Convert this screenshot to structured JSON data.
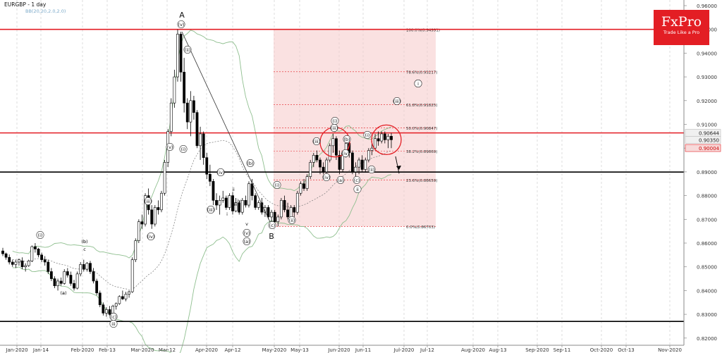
{
  "header": {
    "title": "EURGBP - 1 day",
    "indicator": "BB(20,20,2.0,2.0)"
  },
  "brand": {
    "name": "FxPro",
    "tagline": "Trade Like a Pro",
    "color": "#e31e24"
  },
  "chart_data": {
    "type": "candlestick",
    "symbol": "EURGBP",
    "timeframe": "1 day",
    "ylim": [
      0.8165,
      0.9615
    ],
    "y_ticks": [
      "0.96000",
      "0.95000",
      "0.94000",
      "0.93000",
      "0.92000",
      "0.91000",
      "0.90000",
      "0.89000",
      "0.88000",
      "0.87000",
      "0.86000",
      "0.85000",
      "0.84000",
      "0.83000",
      "0.82000"
    ],
    "x_ticks": [
      "Jan-2020",
      "Jan-14",
      "Feb-2020",
      "Feb-13",
      "Mar-2020",
      "Mar-12",
      "Apr-2020",
      "Apr-12",
      "May-2020",
      "May-13",
      "Jun-2020",
      "Jun-11",
      "Jul-2020",
      "Jul-12",
      "Aug-2020",
      "Aug-13",
      "Sep-2020",
      "Sep-11",
      "Oct-2020",
      "Oct-13",
      "Nov-2020"
    ],
    "price_tags": [
      {
        "label": "0.90644",
        "value": 0.90644,
        "style": "light"
      },
      {
        "label": "0.90350",
        "value": 0.9035,
        "style": "light"
      },
      {
        "label": "0.90004",
        "value": 0.90004,
        "style": "red"
      }
    ],
    "horizontal_lines": [
      {
        "value": 0.95,
        "color": "#e31e24"
      },
      {
        "value": 0.9064,
        "color": "#e31e24"
      },
      {
        "value": 0.8899,
        "color": "#000000"
      },
      {
        "value": 0.827,
        "color": "#000000"
      }
    ],
    "fibonacci": {
      "levels": [
        {
          "label": "100.0%(0.94991)",
          "value": 0.94991
        },
        {
          "label": "78.6%(0.93217)",
          "value": 0.93217
        },
        {
          "label": "61.8%(0.91825)",
          "value": 0.91825
        },
        {
          "label": "50.0%(0.90847)",
          "value": 0.90847
        },
        {
          "label": "38.2%(0.89869)",
          "value": 0.89869
        },
        {
          "label": "23.6%(0.88659)",
          "value": 0.88659
        },
        {
          "label": "0.0%(0.86703)",
          "value": 0.86703
        }
      ],
      "color": "#e31e24"
    },
    "candles": [
      [
        0.8567,
        0.858,
        0.8545,
        0.8555
      ],
      [
        0.8555,
        0.856,
        0.853,
        0.854
      ],
      [
        0.854,
        0.8552,
        0.851,
        0.852
      ],
      [
        0.852,
        0.853,
        0.85,
        0.851
      ],
      [
        0.851,
        0.853,
        0.8495,
        0.852
      ],
      [
        0.852,
        0.8535,
        0.8505,
        0.853
      ],
      [
        0.8525,
        0.854,
        0.849,
        0.85
      ],
      [
        0.85,
        0.8515,
        0.848,
        0.8505
      ],
      [
        0.8505,
        0.853,
        0.85,
        0.8525
      ],
      [
        0.8525,
        0.859,
        0.852,
        0.8585
      ],
      [
        0.8585,
        0.86,
        0.856,
        0.8575
      ],
      [
        0.8575,
        0.858,
        0.854,
        0.855
      ],
      [
        0.855,
        0.856,
        0.852,
        0.853
      ],
      [
        0.853,
        0.8545,
        0.8505,
        0.852
      ],
      [
        0.852,
        0.853,
        0.847,
        0.848
      ],
      [
        0.848,
        0.8495,
        0.844,
        0.845
      ],
      [
        0.845,
        0.846,
        0.841,
        0.842
      ],
      [
        0.842,
        0.845,
        0.84,
        0.844
      ],
      [
        0.844,
        0.8455,
        0.842,
        0.843
      ],
      [
        0.843,
        0.849,
        0.8425,
        0.848
      ],
      [
        0.848,
        0.8495,
        0.8455,
        0.8465
      ],
      [
        0.8465,
        0.848,
        0.842,
        0.843
      ],
      [
        0.843,
        0.8445,
        0.84,
        0.841
      ],
      [
        0.841,
        0.848,
        0.8405,
        0.847
      ],
      [
        0.847,
        0.852,
        0.846,
        0.851
      ],
      [
        0.851,
        0.853,
        0.848,
        0.849
      ],
      [
        0.849,
        0.852,
        0.848,
        0.8515
      ],
      [
        0.8515,
        0.8525,
        0.847,
        0.848
      ],
      [
        0.848,
        0.8495,
        0.843,
        0.844
      ],
      [
        0.844,
        0.845,
        0.838,
        0.839
      ],
      [
        0.839,
        0.84,
        0.833,
        0.834
      ],
      [
        0.834,
        0.835,
        0.8295,
        0.8305
      ],
      [
        0.8305,
        0.833,
        0.829,
        0.832
      ],
      [
        0.832,
        0.8335,
        0.8295,
        0.83
      ],
      [
        0.83,
        0.834,
        0.8295,
        0.8335
      ],
      [
        0.8335,
        0.835,
        0.832,
        0.8345
      ],
      [
        0.8345,
        0.838,
        0.834,
        0.8375
      ],
      [
        0.8375,
        0.84,
        0.836,
        0.8365
      ],
      [
        0.8365,
        0.8395,
        0.8355,
        0.8385
      ],
      [
        0.8385,
        0.84,
        0.837,
        0.8395
      ],
      [
        0.8395,
        0.854,
        0.839,
        0.853
      ],
      [
        0.853,
        0.862,
        0.852,
        0.861
      ],
      [
        0.861,
        0.87,
        0.86,
        0.869
      ],
      [
        0.869,
        0.872,
        0.866,
        0.868
      ],
      [
        0.868,
        0.881,
        0.867,
        0.88
      ],
      [
        0.88,
        0.883,
        0.872,
        0.874
      ],
      [
        0.874,
        0.876,
        0.866,
        0.868
      ],
      [
        0.868,
        0.876,
        0.867,
        0.875
      ],
      [
        0.875,
        0.878,
        0.872,
        0.874
      ],
      [
        0.874,
        0.882,
        0.873,
        0.881
      ],
      [
        0.881,
        0.895,
        0.88,
        0.894
      ],
      [
        0.894,
        0.908,
        0.892,
        0.907
      ],
      [
        0.907,
        0.921,
        0.905,
        0.919
      ],
      [
        0.919,
        0.933,
        0.917,
        0.93
      ],
      [
        0.93,
        0.95,
        0.928,
        0.948
      ],
      [
        0.948,
        0.949,
        0.928,
        0.932
      ],
      [
        0.932,
        0.938,
        0.915,
        0.919
      ],
      [
        0.919,
        0.921,
        0.908,
        0.911
      ],
      [
        0.911,
        0.924,
        0.905,
        0.92
      ],
      [
        0.92,
        0.922,
        0.912,
        0.915
      ],
      [
        0.915,
        0.916,
        0.9,
        0.901
      ],
      [
        0.901,
        0.909,
        0.895,
        0.906
      ],
      [
        0.906,
        0.907,
        0.893,
        0.896
      ],
      [
        0.896,
        0.898,
        0.887,
        0.889
      ],
      [
        0.889,
        0.893,
        0.884,
        0.886
      ],
      [
        0.886,
        0.887,
        0.876,
        0.878
      ],
      [
        0.878,
        0.881,
        0.874,
        0.876
      ],
      [
        0.876,
        0.88,
        0.872,
        0.878
      ],
      [
        0.878,
        0.882,
        0.877,
        0.879
      ],
      [
        0.879,
        0.88,
        0.874,
        0.875
      ],
      [
        0.875,
        0.881,
        0.874,
        0.88
      ],
      [
        0.88,
        0.8815,
        0.872,
        0.8735
      ],
      [
        0.8735,
        0.879,
        0.873,
        0.877
      ],
      [
        0.877,
        0.878,
        0.872,
        0.873
      ],
      [
        0.873,
        0.879,
        0.872,
        0.878
      ],
      [
        0.878,
        0.88,
        0.875,
        0.876
      ],
      [
        0.876,
        0.886,
        0.875,
        0.885
      ],
      [
        0.885,
        0.887,
        0.878,
        0.88
      ],
      [
        0.88,
        0.881,
        0.874,
        0.875
      ],
      [
        0.875,
        0.878,
        0.874,
        0.877
      ],
      [
        0.877,
        0.879,
        0.872,
        0.873
      ],
      [
        0.873,
        0.876,
        0.871,
        0.875
      ],
      [
        0.875,
        0.876,
        0.87,
        0.871
      ],
      [
        0.871,
        0.874,
        0.869,
        0.873
      ],
      [
        0.873,
        0.874,
        0.868,
        0.869
      ],
      [
        0.869,
        0.872,
        0.867,
        0.871
      ],
      [
        0.871,
        0.879,
        0.87,
        0.878
      ],
      [
        0.878,
        0.88,
        0.873,
        0.874
      ],
      [
        0.874,
        0.877,
        0.87,
        0.871
      ],
      [
        0.871,
        0.876,
        0.869,
        0.875
      ],
      [
        0.875,
        0.876,
        0.871,
        0.873
      ],
      [
        0.873,
        0.882,
        0.872,
        0.881
      ],
      [
        0.881,
        0.886,
        0.88,
        0.885
      ],
      [
        0.885,
        0.887,
        0.882,
        0.883
      ],
      [
        0.883,
        0.889,
        0.882,
        0.888
      ],
      [
        0.888,
        0.895,
        0.887,
        0.894
      ],
      [
        0.894,
        0.898,
        0.892,
        0.897
      ],
      [
        0.897,
        0.899,
        0.894,
        0.895
      ],
      [
        0.895,
        0.896,
        0.889,
        0.892
      ],
      [
        0.892,
        0.894,
        0.889,
        0.89
      ],
      [
        0.89,
        0.896,
        0.889,
        0.895
      ],
      [
        0.895,
        0.902,
        0.894,
        0.901
      ],
      [
        0.901,
        0.906,
        0.898,
        0.904
      ],
      [
        0.904,
        0.905,
        0.895,
        0.897
      ],
      [
        0.897,
        0.899,
        0.889,
        0.891
      ],
      [
        0.891,
        0.899,
        0.89,
        0.898
      ],
      [
        0.898,
        0.903,
        0.896,
        0.902
      ],
      [
        0.902,
        0.903,
        0.896,
        0.898
      ],
      [
        0.898,
        0.899,
        0.889,
        0.89
      ],
      [
        0.89,
        0.894,
        0.888,
        0.892
      ],
      [
        0.892,
        0.896,
        0.889,
        0.895
      ],
      [
        0.895,
        0.897,
        0.89,
        0.891
      ],
      [
        0.891,
        0.896,
        0.89,
        0.895
      ],
      [
        0.895,
        0.9,
        0.894,
        0.899
      ],
      [
        0.899,
        0.903,
        0.897,
        0.9
      ],
      [
        0.9,
        0.906,
        0.899,
        0.904
      ],
      [
        0.904,
        0.907,
        0.901,
        0.903
      ],
      [
        0.903,
        0.907,
        0.902,
        0.906
      ],
      [
        0.906,
        0.907,
        0.902,
        0.9035
      ],
      [
        0.9035,
        0.906,
        0.9,
        0.905
      ],
      [
        0.905,
        0.9064,
        0.9,
        0.9035
      ]
    ],
    "wave_labels": [
      "A",
      "B",
      "(v)",
      "(ii)",
      "(i)",
      "(iii)",
      "(iv)",
      "(v)",
      "(a)",
      "(b)",
      "(c)",
      "(a)",
      "(b)",
      "(c)",
      "(i)",
      "(ii)",
      "(iii)",
      "(iv)",
      "(v)",
      "(iii)",
      "(iv)",
      "ii",
      "iii",
      "iv",
      "v",
      "i",
      "(i)",
      "(iii)",
      "(i)",
      "(iii)",
      "(iv)",
      "(a)",
      "(b)",
      "(c)",
      "(i)",
      "(ii)",
      "(iii)",
      "(c)",
      "ii",
      "iii",
      "i",
      "b",
      "c",
      "a"
    ]
  }
}
